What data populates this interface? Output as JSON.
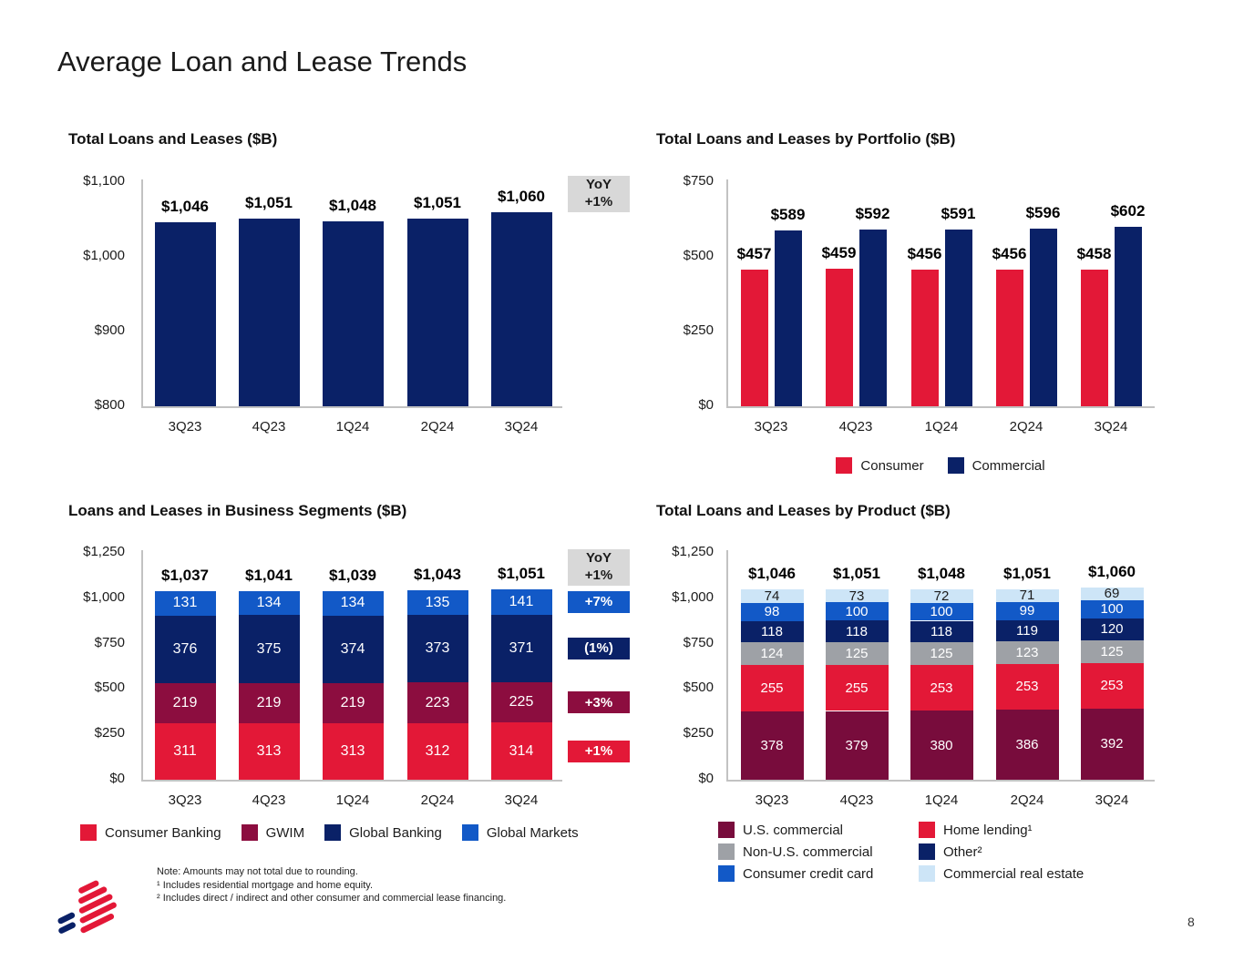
{
  "page": {
    "title": "Average Loan and Lease Trends",
    "page_number": "8"
  },
  "colors": {
    "navy": "#0A2167",
    "red": "#E31837",
    "bright_blue": "#1259C7",
    "gwim_maroon": "#8C0D3F",
    "us_commercial_maroon": "#780C3C",
    "gray": "#9EA1A6",
    "light_blue": "#CDE5F7",
    "yoy_box_bg": "#D8D8D8"
  },
  "footnotes": [
    "Note: Amounts may not total due to rounding.",
    "¹ Includes residential mortgage and home equity.",
    "² Includes direct / indirect and other consumer and commercial lease financing."
  ],
  "chart_data": [
    {
      "id": "total",
      "type": "bar",
      "title": "Total Loans and Leases ($B)",
      "categories": [
        "3Q23",
        "4Q23",
        "1Q24",
        "2Q24",
        "3Q24"
      ],
      "values": [
        1046,
        1051,
        1048,
        1051,
        1060
      ],
      "labels": [
        "$1,046",
        "$1,051",
        "$1,048",
        "$1,051",
        "$1,060"
      ],
      "ylim": [
        800,
        1100
      ],
      "yticks": [
        {
          "label": "$1,100",
          "value": 1100
        },
        {
          "label": "$1,000",
          "value": 1000
        },
        {
          "label": "$900",
          "value": 900
        },
        {
          "label": "$800",
          "value": 800
        }
      ],
      "bar_color": "#0A2167",
      "yoy_box": {
        "line1": "YoY",
        "line2": "+1%"
      }
    },
    {
      "id": "portfolio",
      "type": "grouped-bar",
      "title": "Total Loans and Leases by Portfolio ($B)",
      "categories": [
        "3Q23",
        "4Q23",
        "1Q24",
        "2Q24",
        "3Q24"
      ],
      "ylim": [
        0,
        750
      ],
      "yticks": [
        {
          "label": "$750",
          "value": 750
        },
        {
          "label": "$500",
          "value": 500
        },
        {
          "label": "$250",
          "value": 250
        },
        {
          "label": "$0",
          "value": 0
        }
      ],
      "series": [
        {
          "name": "Consumer",
          "color": "#E31837",
          "values": [
            457,
            459,
            456,
            456,
            458
          ],
          "labels": [
            "$457",
            "$459",
            "$456",
            "$456",
            "$458"
          ]
        },
        {
          "name": "Commercial",
          "color": "#0A2167",
          "values": [
            589,
            592,
            591,
            596,
            602
          ],
          "labels": [
            "$589",
            "$592",
            "$591",
            "$596",
            "$602"
          ]
        }
      ],
      "legend": [
        {
          "label": "Consumer",
          "color": "#E31837"
        },
        {
          "label": "Commercial",
          "color": "#0A2167"
        }
      ]
    },
    {
      "id": "segments",
      "type": "stacked-bar",
      "title": "Loans and Leases in Business Segments ($B)",
      "categories": [
        "3Q23",
        "4Q23",
        "1Q24",
        "2Q24",
        "3Q24"
      ],
      "ylim": [
        0,
        1250
      ],
      "yticks": [
        {
          "label": "$1,250",
          "value": 1250
        },
        {
          "label": "$1,000",
          "value": 1000
        },
        {
          "label": "$750",
          "value": 750
        },
        {
          "label": "$500",
          "value": 500
        },
        {
          "label": "$250",
          "value": 250
        },
        {
          "label": "$0",
          "value": 0
        }
      ],
      "totals_labels": [
        "$1,037",
        "$1,041",
        "$1,039",
        "$1,043",
        "$1,051"
      ],
      "seg_font": 16,
      "series": [
        {
          "name": "Consumer Banking",
          "color": "#E31837",
          "values": [
            311,
            313,
            313,
            312,
            314
          ],
          "yoy_label": "+1%"
        },
        {
          "name": "GWIM",
          "color": "#8C0D3F",
          "values": [
            219,
            219,
            219,
            223,
            225
          ],
          "yoy_label": "+3%"
        },
        {
          "name": "Global Banking",
          "color": "#0A2167",
          "values": [
            376,
            375,
            374,
            373,
            371
          ],
          "yoy_label": "(1%)"
        },
        {
          "name": "Global Markets",
          "color": "#1259C7",
          "values": [
            131,
            134,
            134,
            135,
            141
          ],
          "yoy_label": "+7%"
        }
      ],
      "yoy_box": {
        "line1": "YoY",
        "line2": "+1%"
      },
      "legend": [
        {
          "label": "Consumer Banking",
          "color": "#E31837"
        },
        {
          "label": "GWIM",
          "color": "#8C0D3F"
        },
        {
          "label": "Global Banking",
          "color": "#0A2167"
        },
        {
          "label": "Global Markets",
          "color": "#1259C7"
        }
      ]
    },
    {
      "id": "product",
      "type": "stacked-bar",
      "title": "Total Loans and Leases by Product ($B)",
      "categories": [
        "3Q23",
        "4Q23",
        "1Q24",
        "2Q24",
        "3Q24"
      ],
      "ylim": [
        0,
        1250
      ],
      "yticks": [
        {
          "label": "$1,250",
          "value": 1250
        },
        {
          "label": "$1,000",
          "value": 1000
        },
        {
          "label": "$750",
          "value": 750
        },
        {
          "label": "$500",
          "value": 500
        },
        {
          "label": "$250",
          "value": 250
        },
        {
          "label": "$0",
          "value": 0
        }
      ],
      "totals_labels": [
        "$1,046",
        "$1,051",
        "$1,048",
        "$1,051",
        "$1,060"
      ],
      "seg_font": 15,
      "series": [
        {
          "name": "U.S. commercial",
          "color": "#780C3C",
          "values": [
            378,
            379,
            380,
            386,
            392
          ]
        },
        {
          "name": "Home lending¹",
          "color": "#E31837",
          "values": [
            255,
            255,
            253,
            253,
            253
          ]
        },
        {
          "name": "Non-U.S. commercial",
          "color": "#9EA1A6",
          "values": [
            124,
            125,
            125,
            123,
            125
          ]
        },
        {
          "name": "Other²",
          "color": "#0A2167",
          "values": [
            118,
            118,
            118,
            119,
            120
          ]
        },
        {
          "name": "Consumer credit card",
          "color": "#1259C7",
          "values": [
            98,
            100,
            100,
            99,
            100
          ]
        },
        {
          "name": "Commercial real estate",
          "color": "#CDE5F7",
          "values": [
            74,
            73,
            72,
            71,
            69
          ],
          "text_color": "#1b1b1b"
        }
      ],
      "legend": [
        {
          "label": "U.S. commercial",
          "color": "#780C3C"
        },
        {
          "label": "Home lending¹",
          "color": "#E31837"
        },
        {
          "label": "Non-U.S. commercial",
          "color": "#9EA1A6"
        },
        {
          "label": "Other²",
          "color": "#0A2167"
        },
        {
          "label": "Consumer credit card",
          "color": "#1259C7"
        },
        {
          "label": "Commercial real estate",
          "color": "#CDE5F7"
        }
      ]
    }
  ]
}
